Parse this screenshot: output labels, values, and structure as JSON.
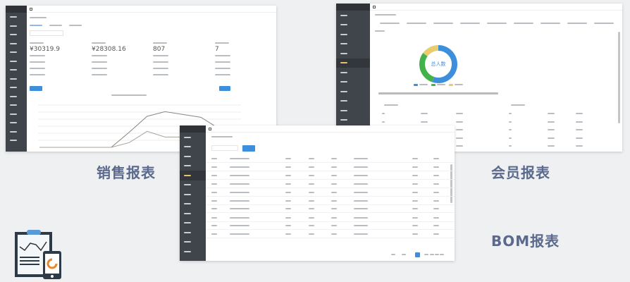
{
  "captions": {
    "sales": "销售报表",
    "member": "会员报表",
    "bom": "BOM报表"
  },
  "sales": {
    "stats": [
      {
        "value": "¥30319.9"
      },
      {
        "value": "¥28308.16"
      },
      {
        "value": "807"
      },
      {
        "value": "7"
      }
    ],
    "chart": {
      "type": "line",
      "series": [
        {
          "values": [
            0,
            0,
            0,
            0,
            0,
            16000,
            33000,
            38000,
            35000,
            32000,
            20000,
            5000
          ]
        },
        {
          "values": [
            0,
            0,
            0,
            0,
            0,
            5000,
            17000,
            11000,
            11000,
            6000,
            4000,
            1000
          ]
        }
      ],
      "ylim": [
        0,
        45000
      ]
    }
  },
  "member": {
    "donut_label": "总人数",
    "donut": [
      {
        "value": 55,
        "color": "#3d8fdc"
      },
      {
        "value": 30,
        "color": "#44b24a"
      },
      {
        "value": 15,
        "color": "#e8cc6e"
      }
    ]
  },
  "colors": {
    "sidebar": "#40454b",
    "accent": "#3d8fdc",
    "caption": "#5b6a8c"
  },
  "pagination": {
    "current": "1"
  }
}
